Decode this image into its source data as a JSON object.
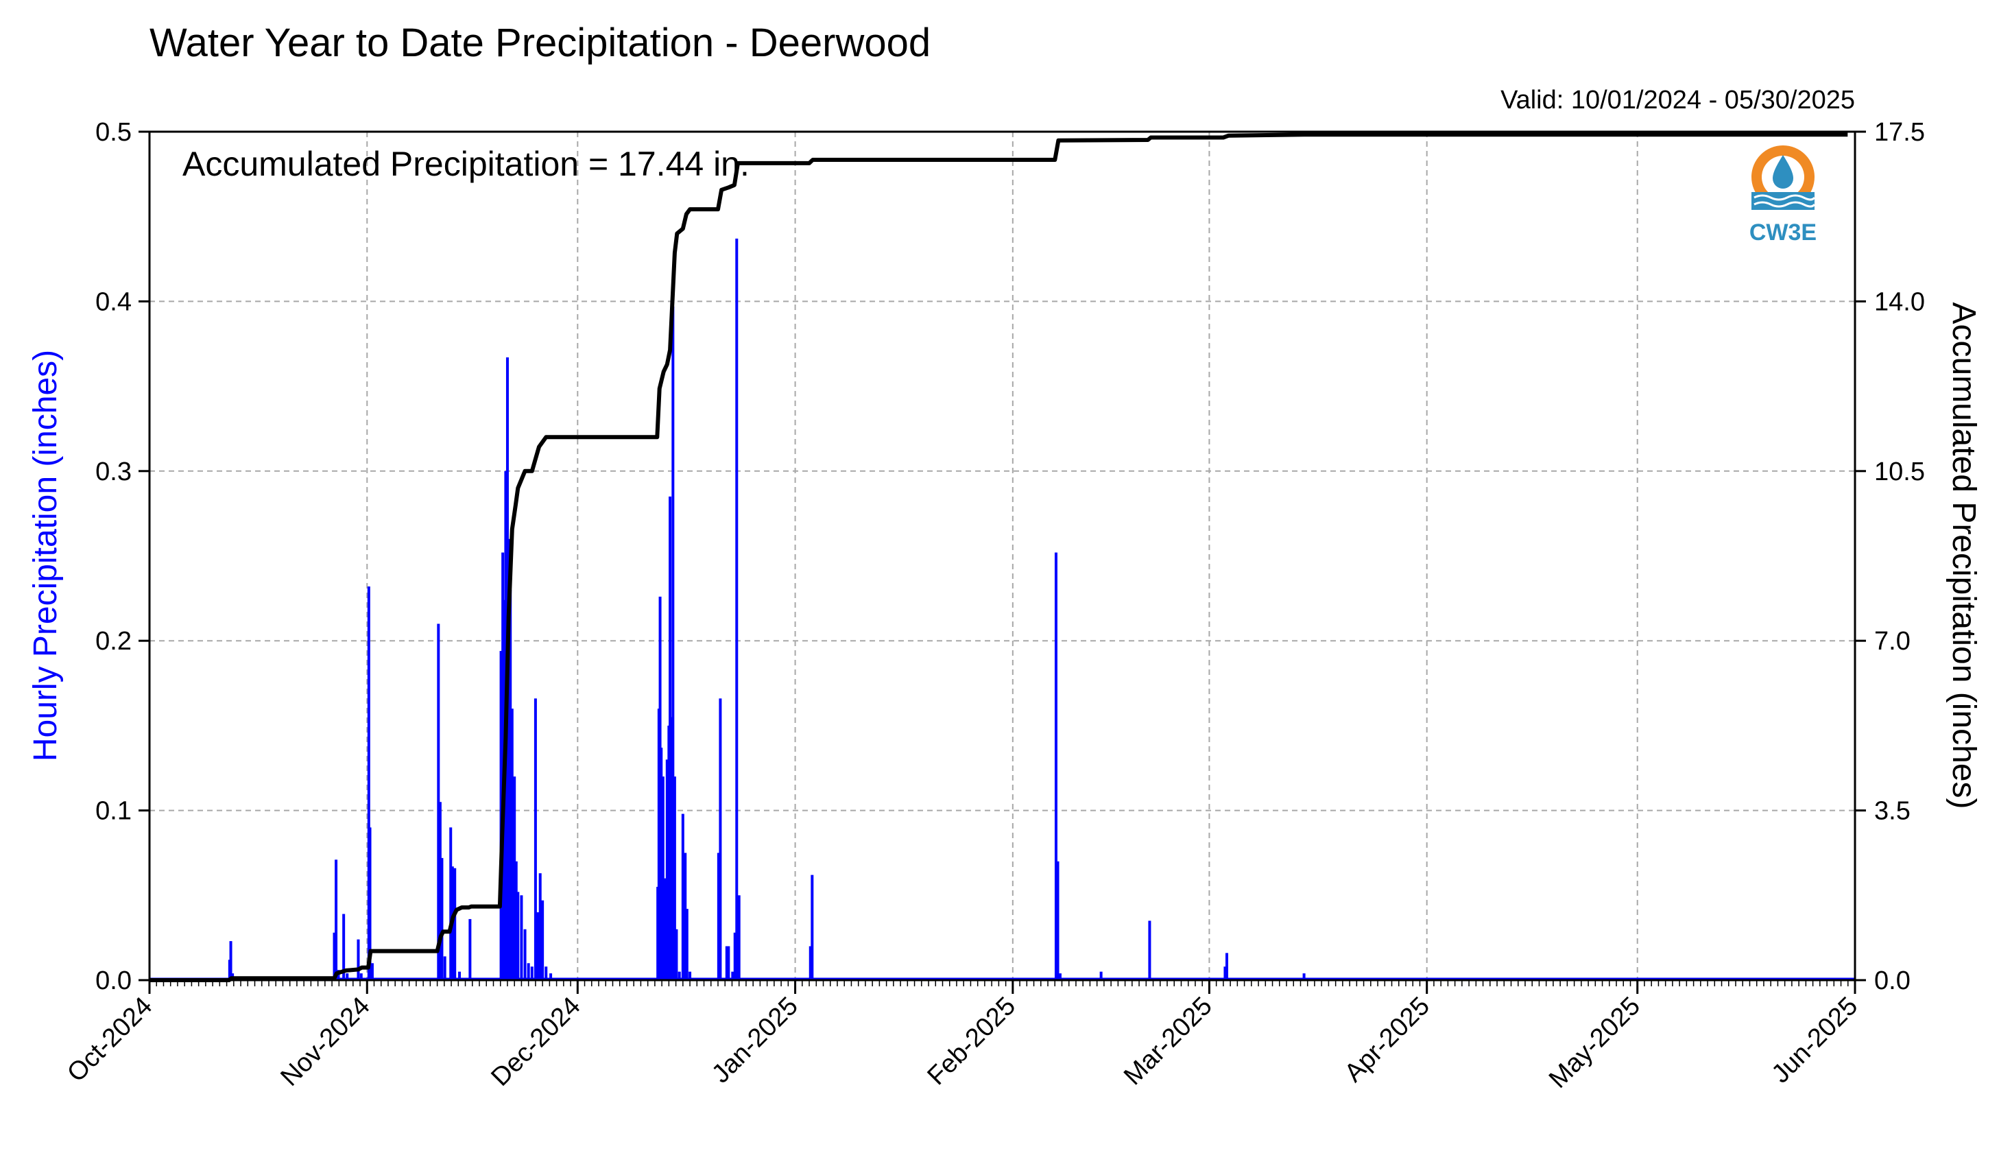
{
  "chart_data": {
    "type": "bar+line",
    "title": "Water Year to Date Precipitation - Deerwood",
    "valid_text": "Valid: 10/01/2024 - 05/30/2025",
    "annotation": "Accumulated Precipitation = 17.44 in.",
    "ylabel_left": "Hourly Precipitation (inches)",
    "ylabel_right": "Accumulated Precipitation (inches)",
    "logo_text": "CW3E",
    "colors": {
      "bars": "#0000ff",
      "line": "#000000",
      "left_label": "#0000ff",
      "logo_orange": "#f08a24",
      "logo_blue": "#2e8fc0"
    },
    "x_range": [
      "2024-10-01",
      "2025-06-01"
    ],
    "x_ticks": [
      {
        "date": "2024-10-01",
        "label": "Oct-2024"
      },
      {
        "date": "2024-11-01",
        "label": "Nov-2024"
      },
      {
        "date": "2024-12-01",
        "label": "Dec-2024"
      },
      {
        "date": "2025-01-01",
        "label": "Jan-2025"
      },
      {
        "date": "2025-02-01",
        "label": "Feb-2025"
      },
      {
        "date": "2025-03-01",
        "label": "Mar-2025"
      },
      {
        "date": "2025-04-01",
        "label": "Apr-2025"
      },
      {
        "date": "2025-05-01",
        "label": "May-2025"
      },
      {
        "date": "2025-06-01",
        "label": "Jun-2025"
      }
    ],
    "y_left": {
      "range": [
        0,
        0.5
      ],
      "ticks": [
        "0.0",
        "0.1",
        "0.2",
        "0.3",
        "0.4",
        "0.5"
      ]
    },
    "y_right": {
      "range": [
        0,
        17.5
      ],
      "ticks": [
        "0.0",
        "3.5",
        "7.0",
        "10.5",
        "14.0",
        "17.5"
      ]
    },
    "grid": true,
    "hourly_precip": [
      {
        "x": "2024-10-12T10:00",
        "y": 0.012
      },
      {
        "x": "2024-10-12T14:00",
        "y": 0.023
      },
      {
        "x": "2024-10-12T20:00",
        "y": 0.004
      },
      {
        "x": "2024-10-27T08:00",
        "y": 0.028
      },
      {
        "x": "2024-10-27T14:00",
        "y": 0.071
      },
      {
        "x": "2024-10-27T22:00",
        "y": 0.006
      },
      {
        "x": "2024-10-28T16:00",
        "y": 0.039
      },
      {
        "x": "2024-10-29T04:00",
        "y": 0.004
      },
      {
        "x": "2024-10-30T18:00",
        "y": 0.024
      },
      {
        "x": "2024-10-31T04:00",
        "y": 0.004
      },
      {
        "x": "2024-11-01T06:00",
        "y": 0.232
      },
      {
        "x": "2024-11-01T10:00",
        "y": 0.09
      },
      {
        "x": "2024-11-01T18:00",
        "y": 0.01
      },
      {
        "x": "2024-11-11T04:00",
        "y": 0.21
      },
      {
        "x": "2024-11-11T10:00",
        "y": 0.105
      },
      {
        "x": "2024-11-11T16:00",
        "y": 0.072
      },
      {
        "x": "2024-11-12T02:00",
        "y": 0.014
      },
      {
        "x": "2024-11-12T22:00",
        "y": 0.09
      },
      {
        "x": "2024-11-13T04:00",
        "y": 0.067
      },
      {
        "x": "2024-11-13T12:00",
        "y": 0.066
      },
      {
        "x": "2024-11-14T04:00",
        "y": 0.005
      },
      {
        "x": "2024-11-15T16:00",
        "y": 0.036
      },
      {
        "x": "2024-11-20T02:00",
        "y": 0.194
      },
      {
        "x": "2024-11-20T08:00",
        "y": 0.252
      },
      {
        "x": "2024-11-20T14:00",
        "y": 0.224
      },
      {
        "x": "2024-11-20T18:00",
        "y": 0.3
      },
      {
        "x": "2024-11-21T00:00",
        "y": 0.367
      },
      {
        "x": "2024-11-21T04:00",
        "y": 0.26
      },
      {
        "x": "2024-11-21T10:00",
        "y": 0.23
      },
      {
        "x": "2024-11-21T16:00",
        "y": 0.16
      },
      {
        "x": "2024-11-22T00:00",
        "y": 0.12
      },
      {
        "x": "2024-11-22T06:00",
        "y": 0.07
      },
      {
        "x": "2024-11-22T12:00",
        "y": 0.052
      },
      {
        "x": "2024-11-23T00:00",
        "y": 0.05
      },
      {
        "x": "2024-11-23T12:00",
        "y": 0.03
      },
      {
        "x": "2024-11-24T00:00",
        "y": 0.01
      },
      {
        "x": "2024-11-24T12:00",
        "y": 0.008
      },
      {
        "x": "2024-11-25T00:00",
        "y": 0.166
      },
      {
        "x": "2024-11-25T08:00",
        "y": 0.04
      },
      {
        "x": "2024-11-25T16:00",
        "y": 0.063
      },
      {
        "x": "2024-11-26T00:00",
        "y": 0.047
      },
      {
        "x": "2024-11-26T12:00",
        "y": 0.008
      },
      {
        "x": "2024-11-27T04:00",
        "y": 0.004
      },
      {
        "x": "2024-12-12T10:00",
        "y": 0.055
      },
      {
        "x": "2024-12-12T14:00",
        "y": 0.16
      },
      {
        "x": "2024-12-12T18:00",
        "y": 0.226
      },
      {
        "x": "2024-12-12T22:00",
        "y": 0.137
      },
      {
        "x": "2024-12-13T04:00",
        "y": 0.12
      },
      {
        "x": "2024-12-13T10:00",
        "y": 0.06
      },
      {
        "x": "2024-12-13T18:00",
        "y": 0.13
      },
      {
        "x": "2024-12-14T00:00",
        "y": 0.15
      },
      {
        "x": "2024-12-14T04:00",
        "y": 0.285
      },
      {
        "x": "2024-12-14T08:00",
        "y": 0.155
      },
      {
        "x": "2024-12-14T14:00",
        "y": 0.397
      },
      {
        "x": "2024-12-14T20:00",
        "y": 0.12
      },
      {
        "x": "2024-12-15T02:00",
        "y": 0.03
      },
      {
        "x": "2024-12-15T12:00",
        "y": 0.005
      },
      {
        "x": "2024-12-16T00:00",
        "y": 0.098
      },
      {
        "x": "2024-12-16T08:00",
        "y": 0.075
      },
      {
        "x": "2024-12-16T14:00",
        "y": 0.042
      },
      {
        "x": "2024-12-17T00:00",
        "y": 0.005
      },
      {
        "x": "2024-12-21T02:00",
        "y": 0.075
      },
      {
        "x": "2024-12-21T08:00",
        "y": 0.166
      },
      {
        "x": "2024-12-22T06:00",
        "y": 0.02
      },
      {
        "x": "2024-12-22T12:00",
        "y": 0.02
      },
      {
        "x": "2024-12-23T02:00",
        "y": 0.005
      },
      {
        "x": "2024-12-23T10:00",
        "y": 0.028
      },
      {
        "x": "2024-12-23T16:00",
        "y": 0.437
      },
      {
        "x": "2024-12-24T00:00",
        "y": 0.05
      },
      {
        "x": "2025-01-03T04:00",
        "y": 0.02
      },
      {
        "x": "2025-01-03T10:00",
        "y": 0.062
      },
      {
        "x": "2025-02-07T04:00",
        "y": 0.252
      },
      {
        "x": "2025-02-07T10:00",
        "y": 0.07
      },
      {
        "x": "2025-02-07T18:00",
        "y": 0.004
      },
      {
        "x": "2025-02-13T14:00",
        "y": 0.005
      },
      {
        "x": "2025-02-20T12:00",
        "y": 0.035
      },
      {
        "x": "2025-03-03T06:00",
        "y": 0.008
      },
      {
        "x": "2025-03-03T12:00",
        "y": 0.016
      },
      {
        "x": "2025-03-14T12:00",
        "y": 0.004
      }
    ],
    "accumulated": [
      {
        "x": "2024-10-01T00:00",
        "y": 0.0
      },
      {
        "x": "2024-10-12T08:00",
        "y": 0.0
      },
      {
        "x": "2024-10-12T16:00",
        "y": 0.04
      },
      {
        "x": "2024-10-27T08:00",
        "y": 0.04
      },
      {
        "x": "2024-10-27T16:00",
        "y": 0.14
      },
      {
        "x": "2024-10-29T00:00",
        "y": 0.2
      },
      {
        "x": "2024-10-30T18:00",
        "y": 0.22
      },
      {
        "x": "2024-10-31T06:00",
        "y": 0.26
      },
      {
        "x": "2024-11-01T04:00",
        "y": 0.26
      },
      {
        "x": "2024-11-01T12:00",
        "y": 0.6
      },
      {
        "x": "2024-11-11T00:00",
        "y": 0.6
      },
      {
        "x": "2024-11-11T12:00",
        "y": 0.9
      },
      {
        "x": "2024-11-11T20:00",
        "y": 1.0
      },
      {
        "x": "2024-11-12T18:00",
        "y": 1.0
      },
      {
        "x": "2024-11-13T06:00",
        "y": 1.3
      },
      {
        "x": "2024-11-13T18:00",
        "y": 1.45
      },
      {
        "x": "2024-11-14T12:00",
        "y": 1.5
      },
      {
        "x": "2024-11-15T12:00",
        "y": 1.5
      },
      {
        "x": "2024-11-15T20:00",
        "y": 1.52
      },
      {
        "x": "2024-11-19T22:00",
        "y": 1.52
      },
      {
        "x": "2024-11-20T06:00",
        "y": 3.0
      },
      {
        "x": "2024-11-20T18:00",
        "y": 5.0
      },
      {
        "x": "2024-11-21T04:00",
        "y": 7.5
      },
      {
        "x": "2024-11-21T16:00",
        "y": 9.3
      },
      {
        "x": "2024-11-22T04:00",
        "y": 9.8
      },
      {
        "x": "2024-11-22T12:00",
        "y": 10.15
      },
      {
        "x": "2024-11-23T12:00",
        "y": 10.5
      },
      {
        "x": "2024-11-24T12:00",
        "y": 10.5
      },
      {
        "x": "2024-11-25T00:00",
        "y": 10.75
      },
      {
        "x": "2024-11-25T12:00",
        "y": 11.0
      },
      {
        "x": "2024-11-26T12:00",
        "y": 11.2
      },
      {
        "x": "2024-12-12T08:00",
        "y": 11.2
      },
      {
        "x": "2024-12-12T16:00",
        "y": 12.2
      },
      {
        "x": "2024-12-13T06:00",
        "y": 12.55
      },
      {
        "x": "2024-12-13T18:00",
        "y": 12.7
      },
      {
        "x": "2024-12-14T04:00",
        "y": 13.0
      },
      {
        "x": "2024-12-14T12:00",
        "y": 14.0
      },
      {
        "x": "2024-12-14T20:00",
        "y": 15.0
      },
      {
        "x": "2024-12-15T04:00",
        "y": 15.4
      },
      {
        "x": "2024-12-16T00:00",
        "y": 15.5
      },
      {
        "x": "2024-12-16T12:00",
        "y": 15.8
      },
      {
        "x": "2024-12-17T00:00",
        "y": 15.9
      },
      {
        "x": "2024-12-21T00:00",
        "y": 15.9
      },
      {
        "x": "2024-12-21T12:00",
        "y": 16.3
      },
      {
        "x": "2024-12-22T12:00",
        "y": 16.35
      },
      {
        "x": "2024-12-23T08:00",
        "y": 16.4
      },
      {
        "x": "2024-12-23T20:00",
        "y": 16.85
      },
      {
        "x": "2025-01-03T00:00",
        "y": 16.85
      },
      {
        "x": "2025-01-03T12:00",
        "y": 16.92
      },
      {
        "x": "2025-02-07T00:00",
        "y": 16.92
      },
      {
        "x": "2025-02-07T12:00",
        "y": 17.32
      },
      {
        "x": "2025-02-20T06:00",
        "y": 17.33
      },
      {
        "x": "2025-02-20T16:00",
        "y": 17.38
      },
      {
        "x": "2025-03-03T00:00",
        "y": 17.38
      },
      {
        "x": "2025-03-03T18:00",
        "y": 17.42
      },
      {
        "x": "2025-03-14T12:00",
        "y": 17.44
      },
      {
        "x": "2025-05-30T23:00",
        "y": 17.44
      }
    ]
  }
}
